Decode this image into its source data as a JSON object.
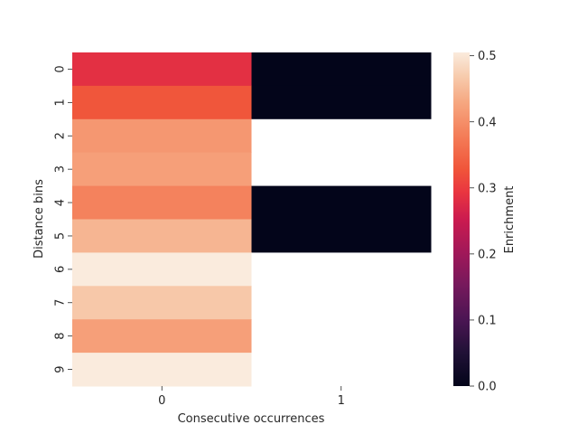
{
  "chart_data": {
    "type": "heatmap",
    "title": "",
    "xlabel": "Consecutive occurrences",
    "ylabel": "Distance bins",
    "x_categories": [
      "0",
      "1"
    ],
    "y_categories": [
      "0",
      "1",
      "2",
      "3",
      "4",
      "5",
      "6",
      "7",
      "8",
      "9"
    ],
    "values": [
      [
        0.285,
        0.0
      ],
      [
        0.33,
        0.0
      ],
      [
        0.41,
        null
      ],
      [
        0.42,
        null
      ],
      [
        0.385,
        0.0
      ],
      [
        0.445,
        0.0
      ],
      [
        0.505,
        null
      ],
      [
        0.465,
        null
      ],
      [
        0.42,
        null
      ],
      [
        0.505,
        null
      ]
    ],
    "colorbar": {
      "label": "Enrichment",
      "range": [
        0.0,
        0.505
      ],
      "ticks": [
        "0.0",
        "0.1",
        "0.2",
        "0.3",
        "0.4",
        "0.5"
      ],
      "tick_values": [
        0.0,
        0.1,
        0.2,
        0.3,
        0.4,
        0.5
      ]
    },
    "colormap": "rocket",
    "missing_color": "#ffffff"
  }
}
